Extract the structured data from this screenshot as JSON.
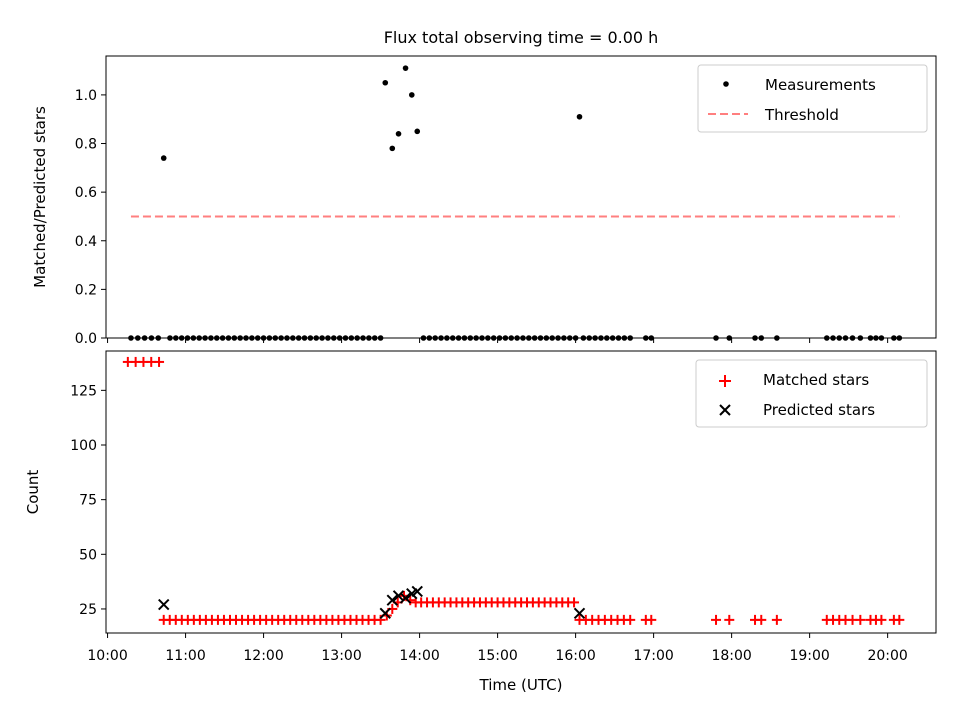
{
  "figure": {
    "title": "Flux total observing time = 0.00 h"
  },
  "chart_data": [
    {
      "type": "scatter",
      "ylabel": "Matched/Predicted stars",
      "ylim": [
        0,
        1.16
      ],
      "yticks": [
        0.0,
        0.2,
        0.4,
        0.6,
        0.8,
        1.0
      ],
      "ytick_labels": [
        "0.0",
        "0.2",
        "0.4",
        "0.6",
        "0.8",
        "1.0"
      ],
      "xlim_hours": [
        9.98,
        20.62
      ],
      "grid": false,
      "legend_position": "top-right",
      "legend": [
        "Measurements",
        "Threshold"
      ],
      "threshold": {
        "name": "Threshold",
        "value": 0.5,
        "x_start_hours": 10.3,
        "x_end_hours": 20.15,
        "color": "#ff7f7f"
      },
      "series": [
        {
          "name": "Measurements",
          "color": "#000000",
          "x_hours": [
            10.72,
            13.56,
            13.65,
            13.73,
            13.82,
            13.9,
            13.97,
            16.05
          ],
          "y": [
            0.74,
            1.05,
            0.78,
            0.84,
            1.11,
            1.0,
            0.85,
            0.91
          ]
        },
        {
          "name": "Measurements (zero values)",
          "color": "#000000",
          "y_constant": 0,
          "x_ranges_hours": [
            [
              10.3,
              10.65,
              5
            ],
            [
              10.8,
              13.5,
              37
            ],
            [
              14.05,
              16.0,
              27
            ],
            [
              16.1,
              16.7,
              9
            ]
          ],
          "x_hours": [
            16.9,
            16.97,
            17.8,
            17.97,
            18.3,
            18.38,
            18.58,
            19.22,
            19.3,
            19.38,
            19.46,
            19.55,
            19.65,
            19.78,
            19.85,
            19.92,
            20.08,
            20.15
          ]
        }
      ]
    },
    {
      "type": "scatter",
      "xlabel": "Time (UTC)",
      "ylabel": "Count",
      "ylim": [
        14,
        143
      ],
      "yticks": [
        25,
        50,
        75,
        100,
        125
      ],
      "ytick_labels": [
        "25",
        "50",
        "75",
        "100",
        "125"
      ],
      "xticks_hours": [
        10,
        11,
        12,
        13,
        14,
        15,
        16,
        17,
        18,
        19,
        20
      ],
      "xtick_labels": [
        "10:00",
        "11:00",
        "12:00",
        "13:00",
        "14:00",
        "15:00",
        "16:00",
        "17:00",
        "18:00",
        "19:00",
        "20:00"
      ],
      "xlim_hours": [
        9.98,
        20.62
      ],
      "grid": false,
      "legend_position": "top-right",
      "legend": [
        "Matched stars",
        "Predicted stars"
      ],
      "series": [
        {
          "name": "Matched stars",
          "color": "#ff0000",
          "segments": [
            {
              "x_start_hours": 10.26,
              "x_end_hours": 10.66,
              "count": 5,
              "y": 138
            },
            {
              "x_start_hours": 10.72,
              "x_end_hours": 13.5,
              "count": 37,
              "y": 20
            },
            {
              "x_start_hours": 14.02,
              "x_end_hours": 15.98,
              "count": 27,
              "y": 28
            },
            {
              "x_start_hours": 16.05,
              "x_end_hours": 16.7,
              "count": 9,
              "y": 20
            }
          ],
          "points": [
            {
              "x_hours": 13.58,
              "y": 22
            },
            {
              "x_hours": 13.65,
              "y": 25
            },
            {
              "x_hours": 13.72,
              "y": 28
            },
            {
              "x_hours": 13.8,
              "y": 31
            },
            {
              "x_hours": 13.88,
              "y": 29
            },
            {
              "x_hours": 13.95,
              "y": 28
            },
            {
              "x_hours": 16.9,
              "y": 20
            },
            {
              "x_hours": 16.97,
              "y": 20
            },
            {
              "x_hours": 17.8,
              "y": 20
            },
            {
              "x_hours": 17.97,
              "y": 20
            },
            {
              "x_hours": 18.3,
              "y": 20
            },
            {
              "x_hours": 18.38,
              "y": 20
            },
            {
              "x_hours": 18.58,
              "y": 20
            },
            {
              "x_hours": 19.22,
              "y": 20
            },
            {
              "x_hours": 19.3,
              "y": 20
            },
            {
              "x_hours": 19.38,
              "y": 20
            },
            {
              "x_hours": 19.46,
              "y": 20
            },
            {
              "x_hours": 19.55,
              "y": 20
            },
            {
              "x_hours": 19.65,
              "y": 20
            },
            {
              "x_hours": 19.78,
              "y": 20
            },
            {
              "x_hours": 19.85,
              "y": 20
            },
            {
              "x_hours": 19.92,
              "y": 20
            },
            {
              "x_hours": 20.08,
              "y": 20
            },
            {
              "x_hours": 20.15,
              "y": 20
            }
          ]
        },
        {
          "name": "Predicted stars",
          "color": "#000000",
          "x_hours": [
            10.72,
            13.56,
            13.65,
            13.73,
            13.82,
            13.9,
            13.97,
            16.05
          ],
          "y": [
            27,
            23,
            29,
            31,
            30,
            32,
            33,
            23
          ]
        }
      ]
    }
  ]
}
